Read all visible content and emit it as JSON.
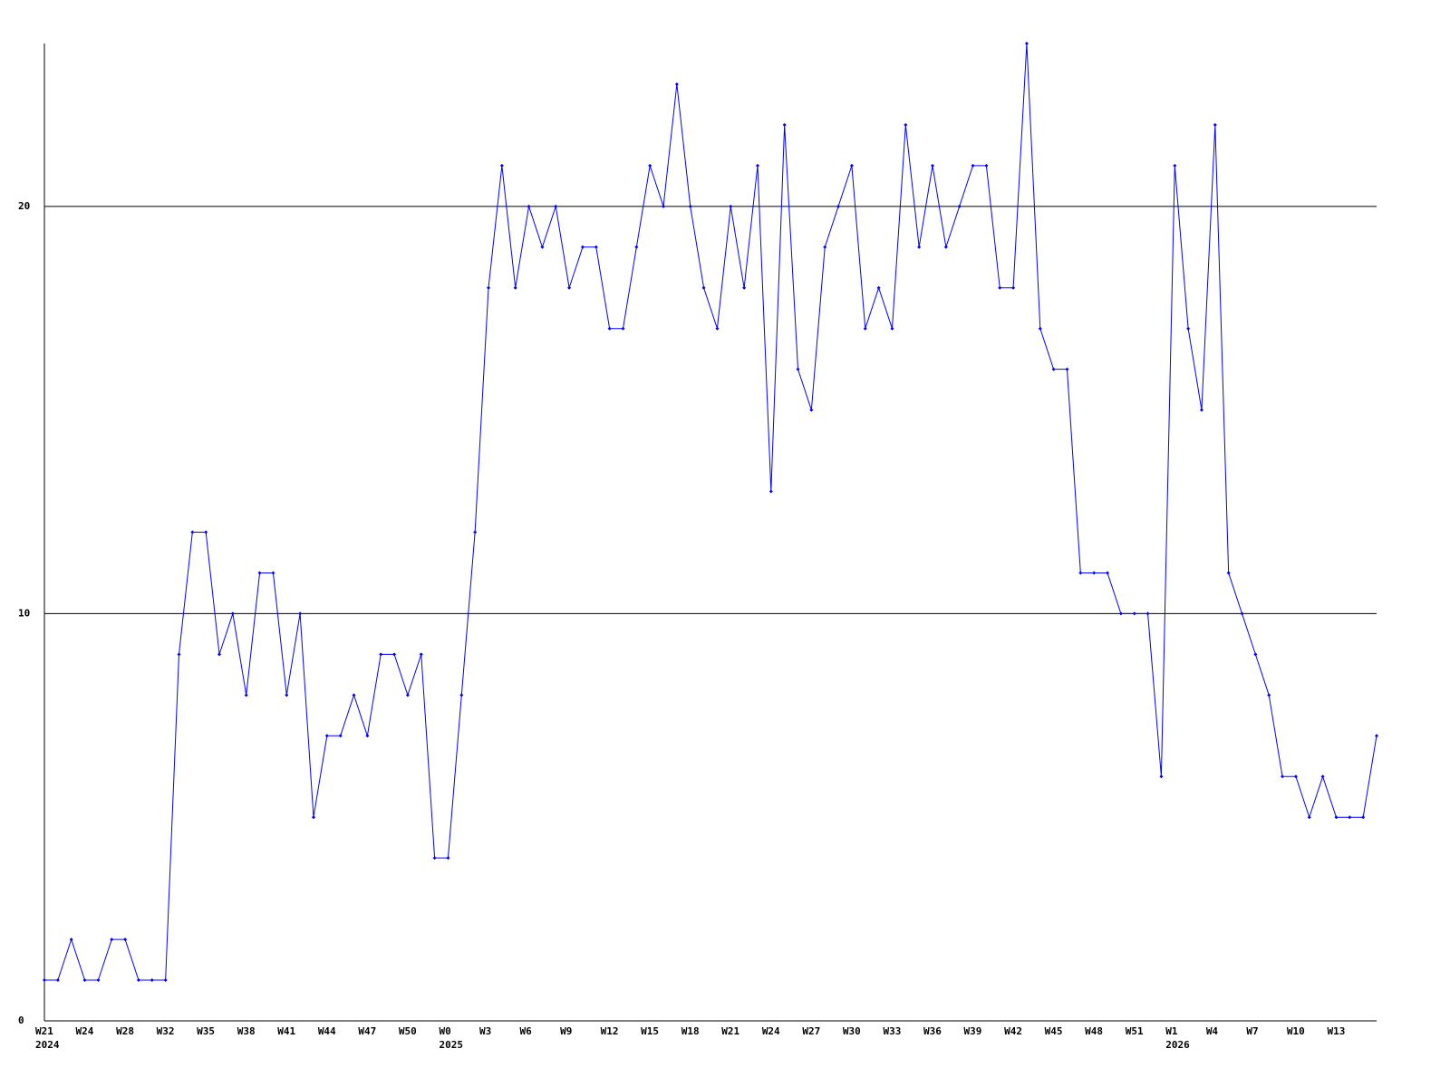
{
  "chart_data": {
    "type": "line",
    "categories": [
      "W21",
      null,
      null,
      "W24",
      null,
      null,
      "W28",
      null,
      null,
      "W32",
      null,
      null,
      "W35",
      null,
      null,
      "W38",
      null,
      null,
      "W41",
      null,
      null,
      "W44",
      null,
      null,
      "W47",
      null,
      null,
      "W50",
      null,
      null,
      "W0",
      null,
      null,
      "W3",
      null,
      null,
      "W6",
      null,
      null,
      "W9",
      null,
      null,
      "W12",
      null,
      null,
      "W15",
      null,
      null,
      "W18",
      null,
      null,
      "W21",
      null,
      null,
      "W24",
      null,
      null,
      "W27",
      null,
      null,
      "W30",
      null,
      null,
      "W33",
      null,
      null,
      "W36",
      null,
      null,
      "W39",
      null,
      null,
      "W42",
      null,
      null,
      "W45",
      null,
      null,
      "W48",
      null,
      null,
      "W51",
      null,
      null,
      "W1",
      null,
      null,
      "W4",
      null,
      null,
      "W7",
      null,
      null,
      "W10",
      null,
      null,
      "W13",
      null,
      null,
      null
    ],
    "year_labels": [
      "2024",
      null,
      null,
      null,
      null,
      null,
      null,
      null,
      null,
      null,
      null,
      null,
      null,
      null,
      null,
      null,
      null,
      null,
      null,
      null,
      null,
      null,
      null,
      null,
      null,
      null,
      null,
      null,
      null,
      null,
      "2025",
      null,
      null,
      null,
      null,
      null,
      null,
      null,
      null,
      null,
      null,
      null,
      null,
      null,
      null,
      null,
      null,
      null,
      null,
      null,
      null,
      null,
      null,
      null,
      null,
      null,
      null,
      null,
      null,
      null,
      null,
      null,
      null,
      null,
      null,
      null,
      null,
      null,
      null,
      null,
      null,
      null,
      null,
      null,
      null,
      null,
      null,
      null,
      null,
      null,
      null,
      null,
      null,
      null,
      "2026",
      null,
      null,
      null,
      null,
      null,
      null,
      null,
      null,
      null,
      null,
      null,
      null,
      null,
      null,
      null
    ],
    "series": [
      {
        "color": "#0000ff",
        "values": [
          1,
          1,
          2,
          1,
          1,
          2,
          2,
          1,
          1,
          1,
          9,
          12,
          12,
          9,
          10,
          8,
          11,
          11,
          8,
          10,
          5,
          7,
          7,
          8,
          7,
          9,
          9,
          8,
          9,
          4,
          4,
          8,
          12,
          18,
          21,
          18,
          20,
          19,
          20,
          18,
          19,
          19,
          17,
          17,
          19,
          21,
          20,
          23,
          20,
          18,
          17,
          20,
          18,
          21,
          13,
          22,
          16,
          15,
          19,
          20,
          21,
          17,
          18,
          17,
          22,
          19,
          21,
          19,
          20,
          21,
          21,
          18,
          18,
          24,
          17,
          16,
          16,
          11,
          11,
          11,
          10,
          10,
          10,
          6,
          21,
          17,
          15,
          22,
          11,
          10,
          9,
          8,
          6,
          6,
          5,
          6,
          5,
          5,
          5,
          7
        ]
      }
    ],
    "ylim": [
      0,
      24
    ],
    "yticks": [
      0,
      10,
      20
    ],
    "grid": true
  }
}
